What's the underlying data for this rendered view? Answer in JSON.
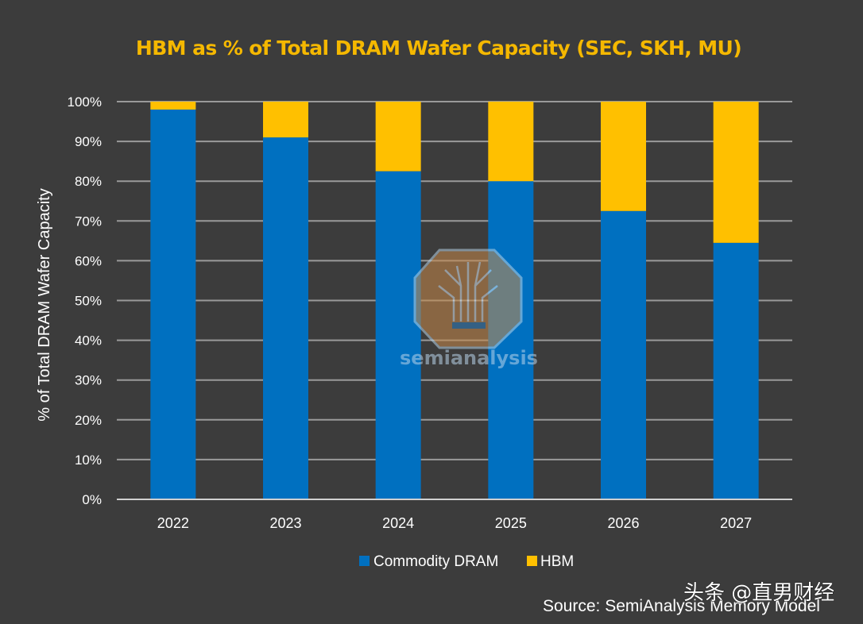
{
  "chart_data": {
    "type": "bar",
    "stacked": true,
    "title": "HBM as % of Total DRAM Wafer Capacity (SEC, SKH, MU)",
    "xlabel": "",
    "ylabel": "% of Total DRAM Wafer Capacity",
    "ylim": [
      0,
      100
    ],
    "yticks": [
      "0%",
      "10%",
      "20%",
      "30%",
      "40%",
      "50%",
      "60%",
      "70%",
      "80%",
      "90%",
      "100%"
    ],
    "grid": true,
    "categories": [
      "2022",
      "2023",
      "2024",
      "2025",
      "2026",
      "2027"
    ],
    "series": [
      {
        "name": "Commodity DRAM",
        "color": "#0070c0",
        "values": [
          98,
          91,
          82.5,
          80,
          72.5,
          64.5
        ]
      },
      {
        "name": "HBM",
        "color": "#ffc000",
        "values": [
          2,
          9,
          17.5,
          20,
          27.5,
          35.5
        ]
      }
    ],
    "legend_position": "bottom-center",
    "source": "Source: SemiAnalysis Memory Model",
    "watermark_logo_text": "semianalysis",
    "overlay_watermark": "头条 @直男财经"
  },
  "colors": {
    "background": "#3c3c3c",
    "title": "#f5b800"
  }
}
